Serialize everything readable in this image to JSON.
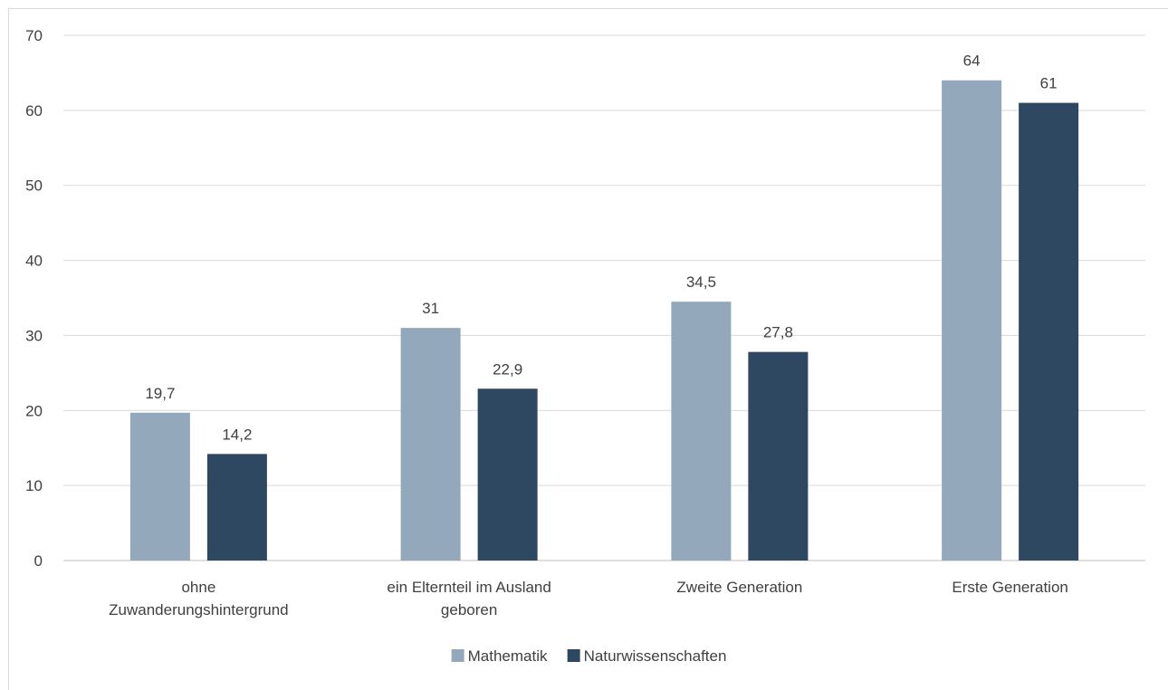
{
  "chart_data": {
    "type": "bar",
    "title": "",
    "xlabel": "",
    "ylabel": "",
    "ylim": [
      0,
      70
    ],
    "yticks": [
      0,
      10,
      20,
      30,
      40,
      50,
      60,
      70
    ],
    "grid": true,
    "legend_position": "bottom",
    "categories": [
      [
        "ohne",
        "Zuwanderungshintergrund"
      ],
      [
        "ein Elternteil im Ausland",
        "geboren"
      ],
      [
        "Zweite Generation"
      ],
      [
        "Erste Generation"
      ]
    ],
    "series": [
      {
        "name": "Mathematik",
        "color": "#94a8bb",
        "values": [
          19.7,
          31,
          34.5,
          64
        ],
        "labels": [
          "19,7",
          "31",
          "34,5",
          "64"
        ]
      },
      {
        "name": "Naturwissenschaften",
        "color": "#2e4862",
        "values": [
          14.2,
          22.9,
          27.8,
          61
        ],
        "labels": [
          "14,2",
          "22,9",
          "27,8",
          "61"
        ]
      }
    ]
  }
}
